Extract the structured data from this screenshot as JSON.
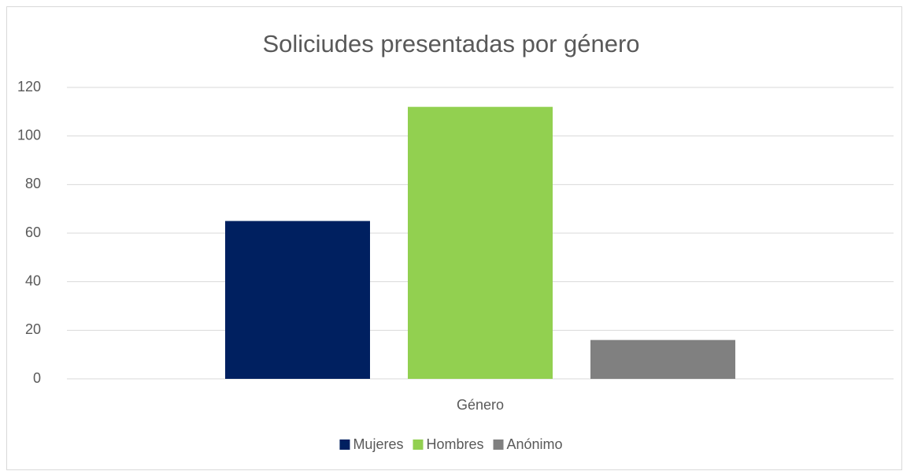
{
  "chart_data": {
    "type": "bar",
    "title": "Soliciudes presentadas por género",
    "categories": [
      "Género"
    ],
    "series": [
      {
        "name": "Mujeres",
        "color": "#002060",
        "values": [
          65
        ]
      },
      {
        "name": "Hombres",
        "color": "#92d050",
        "values": [
          112
        ]
      },
      {
        "name": "Anónimo",
        "color": "#808080",
        "values": [
          16
        ]
      }
    ],
    "ylim": [
      0,
      120
    ],
    "yticks": [
      0,
      20,
      40,
      60,
      80,
      100,
      120
    ],
    "grid": true,
    "legend": "bottom"
  }
}
